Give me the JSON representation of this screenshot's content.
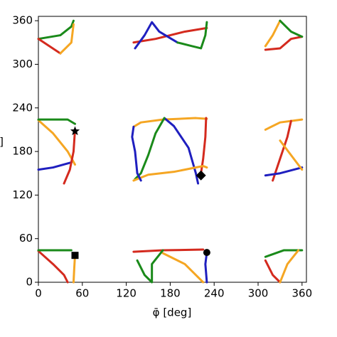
{
  "chart_data": {
    "type": "line",
    "xlabel": "φ̄ [deg]",
    "ylabel": "]",
    "xlim": [
      0,
      366
    ],
    "ylim": [
      0,
      366
    ],
    "xticks": [
      0,
      60,
      120,
      180,
      240,
      300,
      360
    ],
    "yticks": [
      0,
      60,
      120,
      180,
      240,
      300,
      360
    ],
    "grid": false,
    "series": [
      {
        "color": "#f5a623",
        "x": [
          130,
          140,
          170,
          215,
          230
        ],
        "y": [
          214,
          220,
          224,
          226,
          225
        ]
      },
      {
        "color": "#1f1fbf",
        "x": [
          172,
          185,
          205,
          215,
          218
        ],
        "y": [
          226,
          215,
          185,
          150,
          136
        ]
      },
      {
        "color": "#1a8a1a",
        "x": [
          172,
          160,
          150,
          140,
          132
        ],
        "y": [
          226,
          205,
          175,
          150,
          142
        ]
      },
      {
        "color": "#d42a1e",
        "x": [
          229,
          228,
          225,
          222
        ],
        "y": [
          226,
          200,
          170,
          150
        ]
      },
      {
        "color": "#f5a623",
        "x": [
          130,
          150,
          185,
          225,
          230
        ],
        "y": [
          140,
          148,
          152,
          160,
          158
        ]
      },
      {
        "color": "#1f1fbf",
        "x": [
          130,
          128,
          132,
          135,
          140
        ],
        "y": [
          214,
          200,
          180,
          150,
          140
        ]
      },
      {
        "color": "#d42a1e",
        "x": [
          130,
          160,
          200,
          230
        ],
        "y": [
          330,
          335,
          345,
          350
        ]
      },
      {
        "color": "#1f1fbf",
        "x": [
          132,
          145,
          155,
          165,
          190
        ],
        "y": [
          322,
          340,
          358,
          345,
          330
        ]
      },
      {
        "color": "#1a8a1a",
        "x": [
          190,
          210,
          222,
          228,
          230
        ],
        "y": [
          330,
          325,
          322,
          340,
          358
        ]
      },
      {
        "color": "#d42a1e",
        "x": [
          130,
          170,
          225
        ],
        "y": [
          42,
          44,
          45
        ]
      },
      {
        "color": "#1f1fbf",
        "x": [
          230,
          228,
          230
        ],
        "y": [
          0,
          25,
          41
        ]
      },
      {
        "color": "#f5a623",
        "x": [
          170,
          200,
          225
        ],
        "y": [
          40,
          25,
          0
        ]
      },
      {
        "color": "#1a8a1a",
        "x": [
          135,
          145,
          155,
          155,
          170
        ],
        "y": [
          30,
          10,
          0,
          25,
          44
        ]
      },
      {
        "color": "#1a8a1a",
        "x": [
          0,
          30,
          45,
          48
        ],
        "y": [
          335,
          340,
          352,
          360
        ]
      },
      {
        "color": "#d42a1e",
        "x": [
          0,
          15,
          30
        ],
        "y": [
          335,
          325,
          315
        ]
      },
      {
        "color": "#f5a623",
        "x": [
          30,
          45,
          48
        ],
        "y": [
          315,
          330,
          355
        ]
      },
      {
        "color": "#f5a623",
        "x": [
          310,
          320,
          330
        ],
        "y": [
          325,
          340,
          360
        ]
      },
      {
        "color": "#d42a1e",
        "x": [
          310,
          330,
          345,
          360
        ],
        "y": [
          320,
          322,
          335,
          338
        ]
      },
      {
        "color": "#1a8a1a",
        "x": [
          330,
          345,
          360
        ],
        "y": [
          360,
          345,
          338
        ]
      },
      {
        "color": "#f5a623",
        "x": [
          0,
          20,
          40,
          50
        ],
        "y": [
          223,
          205,
          180,
          162
        ]
      },
      {
        "color": "#1f1fbf",
        "x": [
          0,
          20,
          45
        ],
        "y": [
          155,
          158,
          165
        ]
      },
      {
        "color": "#d42a1e",
        "x": [
          50,
          48,
          43,
          35
        ],
        "y": [
          210,
          180,
          155,
          136
        ]
      },
      {
        "color": "#1a8a1a",
        "x": [
          0,
          40,
          50
        ],
        "y": [
          224,
          224,
          218
        ]
      },
      {
        "color": "#f5a623",
        "x": [
          310,
          330,
          360
        ],
        "y": [
          210,
          220,
          224
        ]
      },
      {
        "color": "#d42a1e",
        "x": [
          320,
          330,
          340,
          345
        ],
        "y": [
          140,
          170,
          200,
          222
        ]
      },
      {
        "color": "#1f1fbf",
        "x": [
          310,
          330,
          360
        ],
        "y": [
          147,
          150,
          158
        ]
      },
      {
        "color": "#f5a623",
        "x": [
          330,
          360
        ],
        "y": [
          195,
          155
        ]
      },
      {
        "color": "#d42a1e",
        "x": [
          0,
          20,
          35,
          40
        ],
        "y": [
          43,
          25,
          10,
          0
        ]
      },
      {
        "color": "#1a8a1a",
        "x": [
          0,
          30,
          45
        ],
        "y": [
          44,
          44,
          44
        ]
      },
      {
        "color": "#f5a623",
        "x": [
          48,
          49,
          50
        ],
        "y": [
          0,
          20,
          37
        ]
      },
      {
        "color": "#d42a1e",
        "x": [
          310,
          320,
          330
        ],
        "y": [
          30,
          10,
          0
        ]
      },
      {
        "color": "#1a8a1a",
        "x": [
          310,
          335,
          360
        ],
        "y": [
          35,
          44,
          44
        ]
      },
      {
        "color": "#f5a623",
        "x": [
          330,
          340,
          355
        ],
        "y": [
          0,
          25,
          44
        ]
      }
    ],
    "markers": [
      {
        "shape": "star",
        "x": 50,
        "y": 208
      },
      {
        "shape": "diamond",
        "x": 222,
        "y": 147
      },
      {
        "shape": "square",
        "x": 50,
        "y": 37
      },
      {
        "shape": "circle",
        "x": 230,
        "y": 41
      }
    ]
  }
}
